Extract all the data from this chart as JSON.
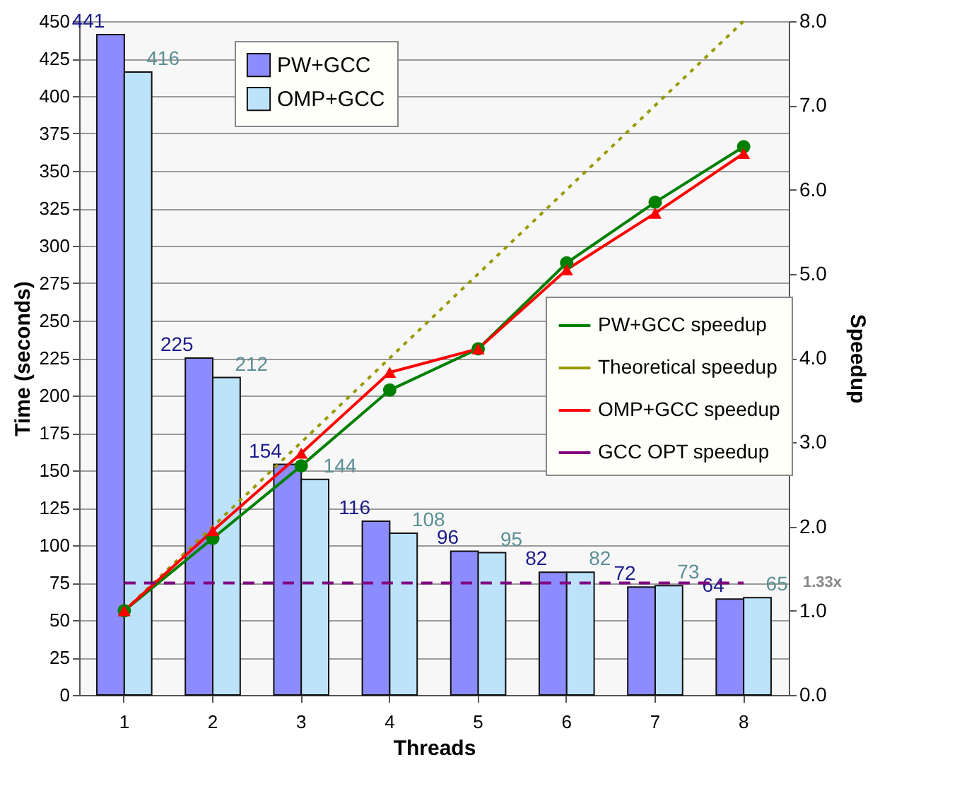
{
  "chart_data": {
    "type": "bar",
    "xlabel": "Threads",
    "ylabel": "Time (seconds)",
    "y2label": "Speedup",
    "categories": [
      "1",
      "2",
      "3",
      "4",
      "5",
      "6",
      "7",
      "8"
    ],
    "series": [
      {
        "name": "PW+GCC",
        "color": "#8c8cff",
        "values": [
          441,
          225,
          154,
          116,
          96,
          82,
          72,
          64
        ],
        "value_labels": [
          "441",
          "225",
          "154",
          "116",
          "96",
          "82",
          "72",
          "64"
        ]
      },
      {
        "name": "OMP+GCC",
        "color": "#bde3fb",
        "values": [
          416,
          212,
          144,
          108,
          95,
          82,
          73,
          65
        ],
        "value_labels": [
          "416",
          "212",
          "144",
          "108",
          "95",
          "82",
          "73",
          "65"
        ]
      },
      {
        "name": "PW+GCC speedup",
        "type": "line",
        "axis": "y2",
        "color": "#008000",
        "marker": "circle",
        "line_style": "solid",
        "values": [
          1.0,
          1.86,
          2.72,
          3.62,
          4.11,
          5.13,
          5.85,
          6.51
        ]
      },
      {
        "name": "Theoretical speedup",
        "type": "line",
        "axis": "y2",
        "color": "#999900",
        "marker": "none",
        "line_style": "dotted",
        "values": [
          1,
          2,
          3,
          4,
          5,
          6,
          7,
          8
        ]
      },
      {
        "name": "OMP+GCC speedup",
        "type": "line",
        "axis": "y2",
        "color": "#ff0000",
        "marker": "triangle",
        "line_style": "solid",
        "values": [
          1.0,
          1.95,
          2.87,
          3.83,
          4.11,
          5.05,
          5.72,
          6.43
        ]
      },
      {
        "name": "GCC OPT speedup",
        "type": "line",
        "axis": "y2",
        "color": "#800080",
        "marker": "none",
        "line_style": "dashed",
        "values": [
          1.33,
          1.33,
          1.33,
          1.33,
          1.33,
          1.33,
          1.33,
          1.33
        ]
      }
    ],
    "ylim": [
      0,
      450
    ],
    "yticks": [
      0,
      25,
      50,
      75,
      100,
      125,
      150,
      175,
      200,
      225,
      250,
      275,
      300,
      325,
      350,
      375,
      400,
      425,
      450
    ],
    "y2lim": [
      0,
      8
    ],
    "y2ticks": [
      {
        "value": 0,
        "label": "0.0"
      },
      {
        "value": 1,
        "label": "1.0"
      },
      {
        "value": 2,
        "label": "2.0"
      },
      {
        "value": 3,
        "label": "3.0"
      },
      {
        "value": 4,
        "label": "4.0"
      },
      {
        "value": 5,
        "label": "5.0"
      },
      {
        "value": 6,
        "label": "6.0"
      },
      {
        "value": 7,
        "label": "7.0"
      },
      {
        "value": 8,
        "label": "8.0"
      }
    ],
    "annotations": [
      "1.33x"
    ],
    "grid": "y",
    "legend": "right"
  }
}
